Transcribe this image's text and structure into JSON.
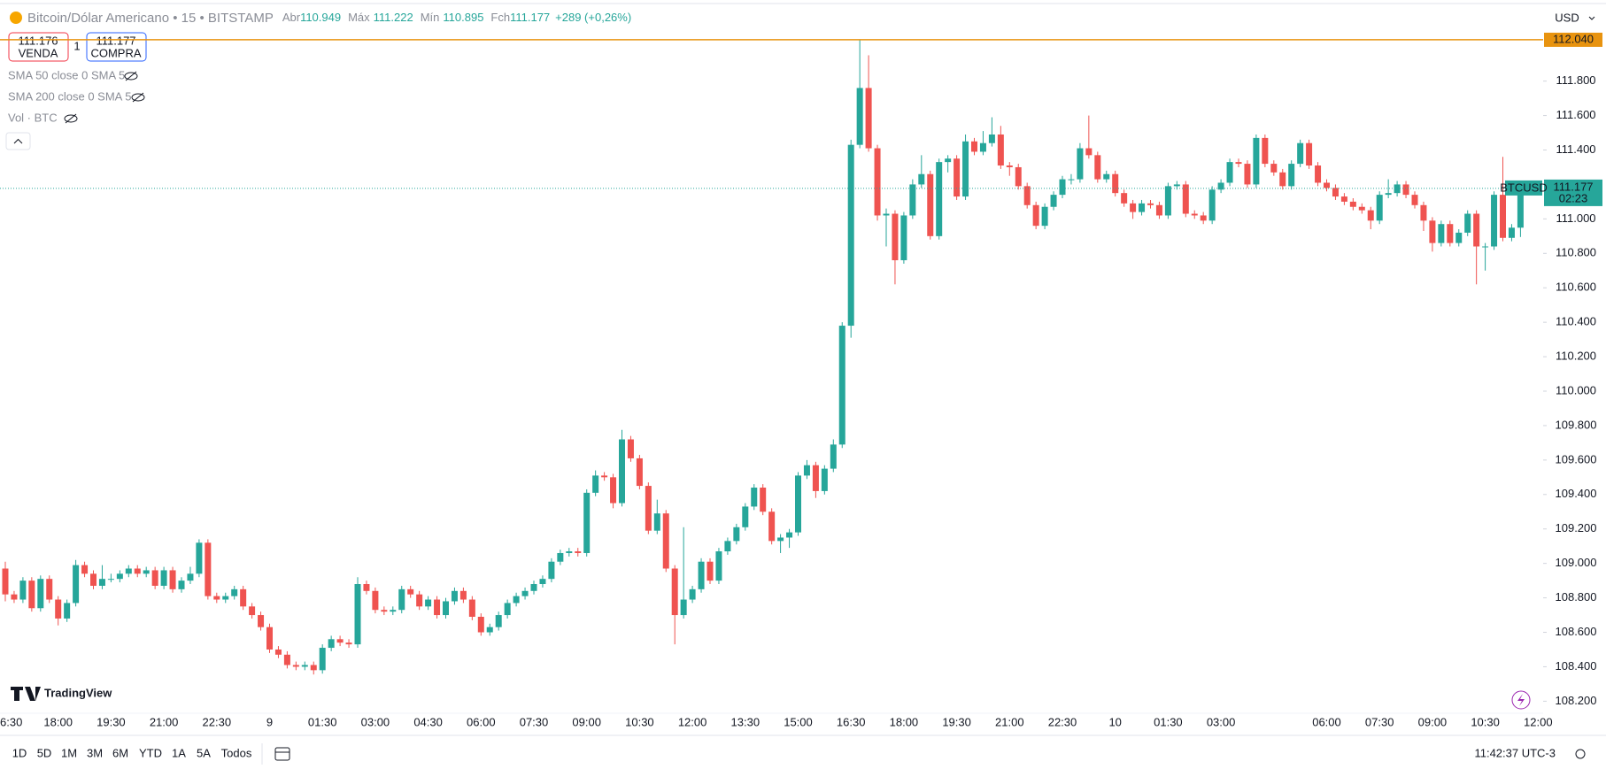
{
  "header": {
    "symbol": "Bitcoin/Dólar Americano • 15 • BITSTAMP",
    "open_label": "Abr",
    "open": "110.949",
    "high_label": "Máx",
    "high": "111.222",
    "low_label": "Mín",
    "low": "110.895",
    "close_label": "Fch",
    "close": "111.177",
    "change": "+289 (+0,26%)"
  },
  "trade": {
    "sell_price": "111.176",
    "sell_label": "VENDA",
    "quantity": "1",
    "buy_price": "111.177",
    "buy_label": "COMPRA"
  },
  "indicators": [
    "SMA 50 close 0 SMA 5",
    "SMA 200 close 0 SMA 5",
    "Vol · BTC"
  ],
  "currency": "USD",
  "logo": "TradingView",
  "ranges": [
    "1D",
    "5D",
    "1M",
    "3M",
    "6M",
    "YTD",
    "1A",
    "5A",
    "Todos"
  ],
  "clock": "11:42:37 UTC-3",
  "chart_data": {
    "type": "candlestick",
    "up_color": "#26a69a",
    "down_color": "#ef5350",
    "grid": false,
    "categories": [
      "6:30",
      null,
      null,
      null,
      null,
      null,
      "18:00",
      null,
      null,
      null,
      null,
      null,
      "19:30",
      null,
      null,
      null,
      null,
      null,
      "21:00",
      null,
      null,
      null,
      null,
      null,
      "22:30",
      null,
      null,
      null,
      null,
      null,
      "9",
      null,
      null,
      null,
      null,
      null,
      "01:30",
      null,
      null,
      null,
      null,
      null,
      "03:00",
      null,
      null,
      null,
      null,
      null,
      "04:30",
      null,
      null,
      null,
      null,
      null,
      "06:00",
      null,
      null,
      null,
      null,
      null,
      "07:30",
      null,
      null,
      null,
      null,
      null,
      "09:00",
      null,
      null,
      null,
      null,
      null,
      "10:30",
      null,
      null,
      null,
      null,
      null,
      "12:00",
      null,
      null,
      null,
      null,
      null,
      "13:30",
      null,
      null,
      null,
      null,
      null,
      "15:00",
      null,
      null,
      null,
      null,
      null,
      "16:30",
      null,
      null,
      null,
      null,
      null,
      "18:00",
      null,
      null,
      null,
      null,
      null,
      "19:30",
      null,
      null,
      null,
      null,
      null,
      "21:00",
      null,
      null,
      null,
      null,
      null,
      "22:30",
      null,
      null,
      null,
      null,
      null,
      "10",
      null,
      null,
      null,
      null,
      null,
      "01:30",
      null,
      null,
      null,
      null,
      null,
      "03:00",
      null,
      null,
      null,
      null,
      null,
      null,
      null,
      null,
      null,
      null,
      null,
      "06:00",
      null,
      null,
      null,
      null,
      null,
      "07:30",
      null,
      null,
      null,
      null,
      null,
      "09:00",
      null,
      null,
      null,
      null,
      null,
      "10:30",
      null,
      null,
      null,
      null,
      null,
      "12:00"
    ],
    "open": [
      108970,
      108820,
      108790,
      108900,
      108740,
      108910,
      108790,
      108680,
      108770,
      108990,
      108940,
      108870,
      108910,
      108910,
      108940,
      108970,
      108940,
      108960,
      108870,
      108960,
      108850,
      108900,
      108940,
      109120,
      108810,
      108790,
      108810,
      108850,
      108750,
      108700,
      108630,
      108500,
      108470,
      108410,
      108400,
      108410,
      108380,
      108510,
      108560,
      108540,
      108530,
      108880,
      108840,
      108730,
      108720,
      108730,
      108850,
      108820,
      108750,
      108790,
      108700,
      108780,
      108840,
      108790,
      108690,
      108600,
      108630,
      108700,
      108770,
      108810,
      108840,
      108880,
      108910,
      109010,
      109060,
      109070,
      109060,
      109410,
      109510,
      109500,
      109350,
      109720,
      109610,
      109450,
      109190,
      109290,
      108970,
      108700,
      108790,
      108850,
      109010,
      108900,
      109070,
      109130,
      109210,
      109330,
      109440,
      109300,
      109130,
      109150,
      109180,
      109510,
      109570,
      109420,
      109550,
      109690,
      110380,
      111430,
      111760,
      111410,
      111020,
      111030,
      110760,
      111020,
      111200,
      111260,
      110900,
      111330,
      111350,
      111130,
      111450,
      111390,
      111440,
      111490,
      111310,
      111300,
      111190,
      111080,
      110960,
      111070,
      111140,
      111230,
      111230,
      111410,
      111370,
      111230,
      111260,
      111150,
      111090,
      111040,
      111090,
      111080,
      111020,
      111190,
      111200,
      111030,
      111020,
      110990,
      111170,
      111210,
      111330,
      111320,
      111200,
      111470,
      111320,
      111270,
      111190,
      111320,
      111440,
      111310,
      111210,
      111180,
      111130,
      111100,
      111070,
      111050,
      110990,
      111140,
      111150,
      111200,
      111140,
      111080,
      110990,
      110860,
      110970,
      110860,
      110920,
      111030,
      110840,
      110840,
      111140,
      110890,
      110949,
      null,
      null
    ],
    "high": [
      109010,
      108840,
      108920,
      108920,
      108930,
      108930,
      108810,
      108790,
      109020,
      109010,
      108960,
      108990,
      108940,
      108960,
      108990,
      108990,
      108980,
      108980,
      108980,
      108980,
      108920,
      108980,
      109140,
      109140,
      108830,
      108830,
      108870,
      108870,
      108770,
      108720,
      108650,
      108520,
      108490,
      108430,
      108430,
      108430,
      108530,
      108580,
      108580,
      108560,
      108920,
      108900,
      108860,
      108750,
      108750,
      108870,
      108870,
      108840,
      108810,
      108810,
      108800,
      108860,
      108860,
      108810,
      108710,
      108650,
      108720,
      108790,
      108830,
      108860,
      108900,
      108930,
      109030,
      109080,
      109090,
      109090,
      109430,
      109540,
      109530,
      109520,
      109775,
      109740,
      109630,
      109470,
      109370,
      109310,
      108990,
      109210,
      108870,
      109030,
      109030,
      109090,
      109150,
      109230,
      109350,
      109460,
      109460,
      109320,
      109170,
      109200,
      109530,
      109600,
      109590,
      109570,
      109720,
      110400,
      111460,
      112040,
      111950,
      111430,
      111060,
      111050,
      111040,
      111230,
      111370,
      111280,
      111350,
      111370,
      111370,
      111490,
      111470,
      111510,
      111590,
      111540,
      111330,
      111320,
      111210,
      111100,
      111090,
      111160,
      111250,
      111260,
      111440,
      111600,
      111390,
      111280,
      111280,
      111170,
      111110,
      111110,
      111110,
      111100,
      111210,
      111220,
      111220,
      111050,
      111040,
      111190,
      111230,
      111350,
      111350,
      111340,
      111490,
      111490,
      111340,
      111290,
      111340,
      111460,
      111460,
      111330,
      111230,
      111200,
      111150,
      111120,
      111090,
      111070,
      111160,
      111230,
      111220,
      111220,
      111160,
      111100,
      111010,
      110990,
      110990,
      110940,
      111050,
      111050,
      110860,
      111160,
      111360,
      110970,
      111222,
      null,
      null
    ],
    "low": [
      108780,
      108770,
      108770,
      108720,
      108720,
      108770,
      108640,
      108660,
      108750,
      108920,
      108850,
      108850,
      108890,
      108890,
      108920,
      108920,
      108920,
      108850,
      108850,
      108830,
      108830,
      108880,
      108920,
      108790,
      108770,
      108770,
      108790,
      108730,
      108680,
      108610,
      108480,
      108450,
      108390,
      108380,
      108380,
      108355,
      108360,
      108490,
      108520,
      108510,
      108510,
      108820,
      108710,
      108700,
      108700,
      108710,
      108800,
      108730,
      108730,
      108680,
      108680,
      108760,
      108770,
      108670,
      108580,
      108580,
      108610,
      108680,
      108750,
      108790,
      108820,
      108860,
      108890,
      108990,
      109040,
      109040,
      109040,
      109390,
      109480,
      109320,
      109330,
      109590,
      109430,
      109170,
      109170,
      108950,
      108530,
      108680,
      108770,
      108830,
      108880,
      108880,
      109050,
      109110,
      109190,
      109310,
      109280,
      109110,
      109060,
      109090,
      109160,
      109490,
      109380,
      109400,
      109530,
      109670,
      110310,
      111410,
      111390,
      110990,
      110840,
      110620,
      110740,
      111000,
      111180,
      110880,
      110880,
      111270,
      111110,
      111110,
      111370,
      111370,
      111420,
      111290,
      111250,
      111170,
      111060,
      110940,
      110940,
      111050,
      111120,
      111200,
      111210,
      111350,
      111210,
      111210,
      111130,
      111070,
      111000,
      111020,
      111060,
      111000,
      111000,
      111170,
      111010,
      111000,
      110970,
      110970,
      111150,
      111190,
      111300,
      111180,
      111180,
      111300,
      111250,
      111170,
      111170,
      111300,
      111290,
      111190,
      111160,
      111110,
      111080,
      111050,
      111030,
      110940,
      110970,
      111120,
      111130,
      111120,
      111060,
      110930,
      110810,
      110840,
      110840,
      110840,
      110900,
      110620,
      110700,
      110820,
      110870,
      110870,
      110895,
      null,
      null
    ],
    "close": [
      108820,
      108790,
      108900,
      108740,
      108910,
      108790,
      108680,
      108770,
      108990,
      108940,
      108870,
      108910,
      108910,
      108940,
      108970,
      108940,
      108960,
      108870,
      108960,
      108850,
      108900,
      108940,
      109120,
      108810,
      108790,
      108810,
      108850,
      108750,
      108700,
      108630,
      108500,
      108470,
      108410,
      108400,
      108410,
      108380,
      108510,
      108560,
      108540,
      108530,
      108880,
      108840,
      108730,
      108720,
      108730,
      108850,
      108820,
      108750,
      108790,
      108700,
      108780,
      108840,
      108790,
      108690,
      108600,
      108630,
      108700,
      108770,
      108810,
      108840,
      108880,
      108910,
      109010,
      109060,
      109070,
      109060,
      109410,
      109510,
      109500,
      109350,
      109720,
      109610,
      109450,
      109190,
      109290,
      108970,
      108700,
      108790,
      108850,
      109010,
      108900,
      109070,
      109130,
      109210,
      109330,
      109440,
      109300,
      109130,
      109150,
      109180,
      109510,
      109570,
      109420,
      109550,
      109690,
      110380,
      111430,
      111760,
      111410,
      111020,
      111030,
      110760,
      111020,
      111200,
      111260,
      110900,
      111330,
      111350,
      111130,
      111450,
      111390,
      111440,
      111490,
      111310,
      111300,
      111190,
      111080,
      110960,
      111070,
      111140,
      111230,
      111230,
      111410,
      111370,
      111230,
      111260,
      111150,
      111090,
      111040,
      111090,
      111080,
      111020,
      111190,
      111200,
      111030,
      111020,
      110990,
      111170,
      111210,
      111330,
      111320,
      111200,
      111470,
      111320,
      111270,
      111190,
      111320,
      111440,
      111310,
      111210,
      111180,
      111130,
      111100,
      111070,
      111050,
      110990,
      111140,
      111150,
      111200,
      111140,
      111080,
      110990,
      110860,
      110970,
      110860,
      110920,
      111030,
      110840,
      110840,
      111140,
      110890,
      110949,
      111177,
      null,
      null
    ],
    "ylim": [
      108130,
      112240
    ],
    "yticks": [
      {
        "value": 108200,
        "label": "108.200"
      },
      {
        "value": 108400,
        "label": "108.400"
      },
      {
        "value": 108600,
        "label": "108.600"
      },
      {
        "value": 108800,
        "label": "108.800"
      },
      {
        "value": 109000,
        "label": "109.000"
      },
      {
        "value": 109200,
        "label": "109.200"
      },
      {
        "value": 109400,
        "label": "109.400"
      },
      {
        "value": 109600,
        "label": "109.600"
      },
      {
        "value": 109800,
        "label": "109.800"
      },
      {
        "value": 110000,
        "label": "110.000"
      },
      {
        "value": 110200,
        "label": "110.200"
      },
      {
        "value": 110400,
        "label": "110.400"
      },
      {
        "value": 110600,
        "label": "110.600"
      },
      {
        "value": 110800,
        "label": "110.800"
      },
      {
        "value": 111000,
        "label": "111.000"
      },
      {
        "value": 111200,
        "label": "111.200"
      },
      {
        "value": 111400,
        "label": "111.400"
      },
      {
        "value": 111600,
        "label": "111.600"
      },
      {
        "value": 111800,
        "label": "111.800"
      }
    ],
    "high_line": {
      "value": 112040,
      "label": "112.040"
    },
    "high_line_color": "#e8930f",
    "last_price": {
      "value": 111177,
      "label": "111.177"
    },
    "symbol_tag": "BTCUSD",
    "countdown": "02:23"
  }
}
